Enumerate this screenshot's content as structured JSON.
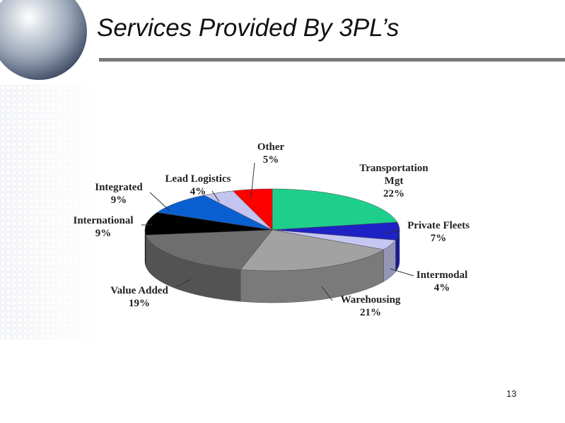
{
  "slide_title": "Services Provided By 3PL’s",
  "page_number": "13",
  "chart_data": {
    "type": "pie",
    "categories": [
      "Transportation Mgt",
      "Private Fleets",
      "Intermodal",
      "Warehousing",
      "Value Added",
      "International",
      "Integrated",
      "Lead Logistics",
      "Other"
    ],
    "values": [
      22,
      7,
      4,
      21,
      19,
      9,
      9,
      4,
      5
    ],
    "value_labels": [
      "22%",
      "7%",
      "4%",
      "21%",
      "19%",
      "9%",
      "9%",
      "4%",
      "5%"
    ],
    "colors": [
      "#1ecf8c",
      "#1e22c4",
      "#c6c6f2",
      "#a2a2a2",
      "#6e6e6e",
      "#000000",
      "#0a5fd0",
      "#c4c4f0",
      "#ff0000"
    ]
  }
}
